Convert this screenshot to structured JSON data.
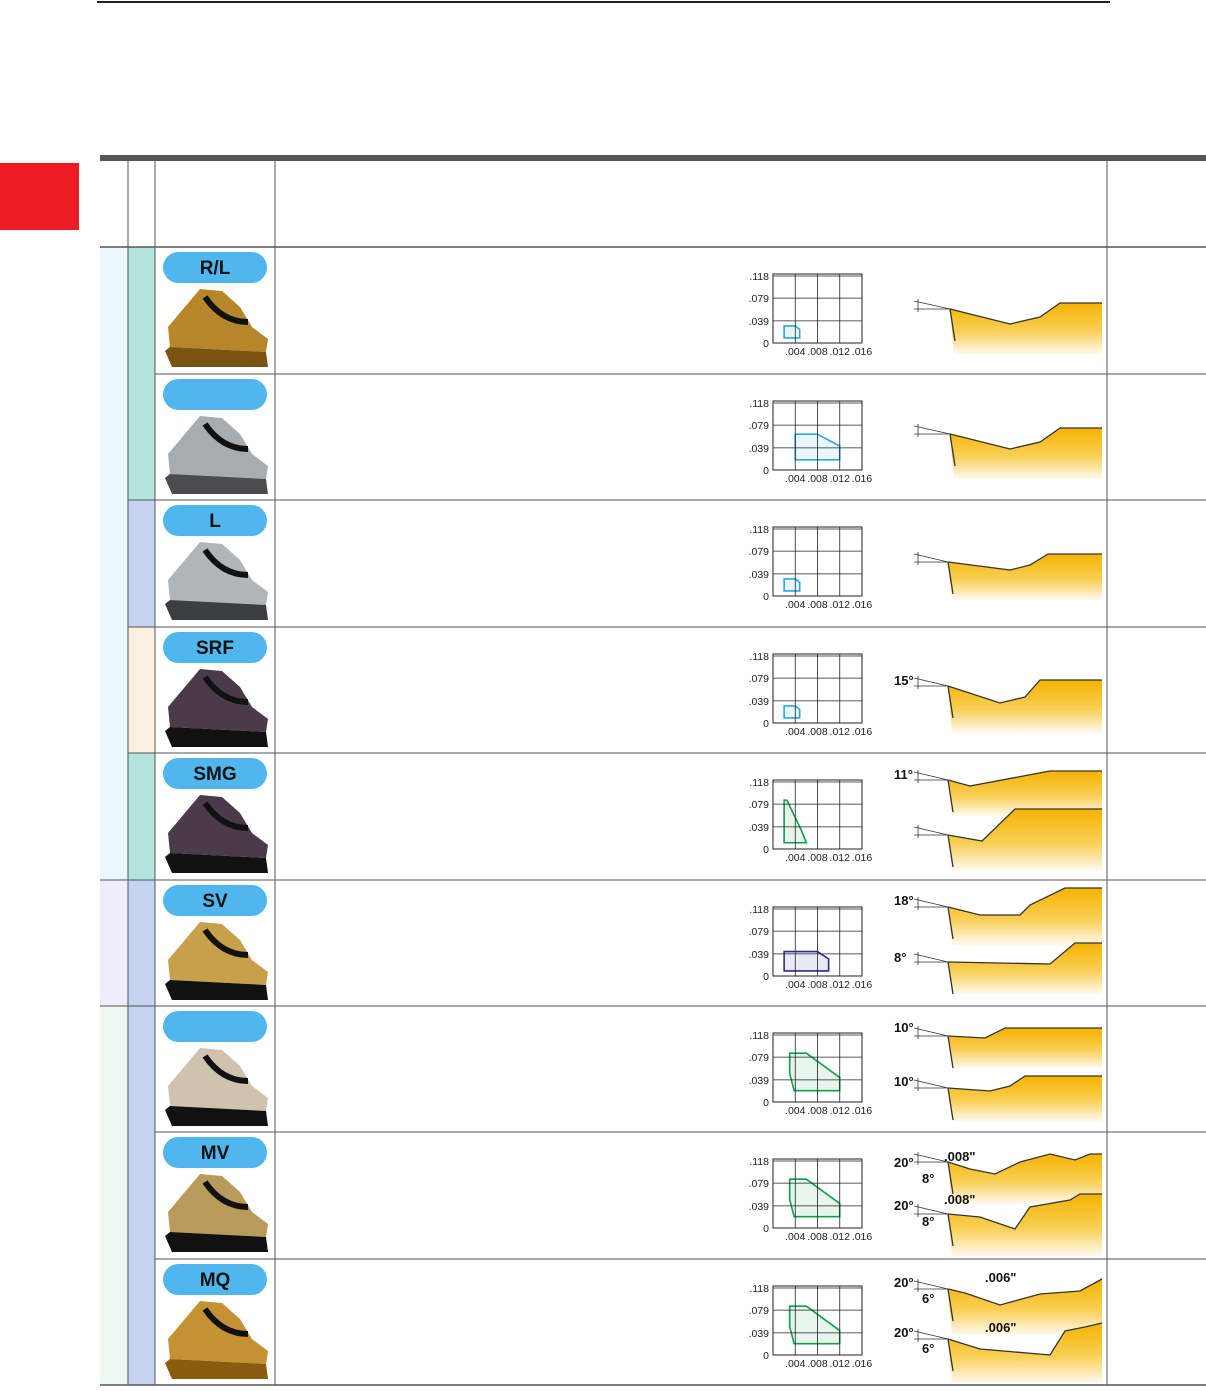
{
  "chart_axes": {
    "xlim": [
      0,
      0.016
    ],
    "ylim": [
      0,
      0.118
    ],
    "xticks": [
      {
        "value": 0.004,
        "label": ".004"
      },
      {
        "value": 0.008,
        "label": ".008"
      },
      {
        "value": 0.012,
        "label": ".012"
      },
      {
        "value": 0.016,
        "label": ".016"
      }
    ],
    "yticks": [
      0,
      {
        "value": 0.039,
        "label": ".039"
      },
      {
        "value": 0.079,
        "label": ".079"
      },
      {
        "value": 0.118,
        "label": ".118"
      }
    ]
  },
  "rows": [
    {
      "label": "R/L",
      "region_color": "#27a9e1",
      "region": {
        "feed": [
          0.002,
          0.002,
          0.004,
          0.0048,
          0.0048
        ],
        "depth": [
          0.009,
          0.03,
          0.03,
          0.024,
          0.009
        ]
      }
    },
    {
      "region_color": "#27a9e1",
      "region": {
        "feed": [
          0.004,
          0.004,
          0.008,
          0.012,
          0.012
        ],
        "depth": [
          0.018,
          0.063,
          0.063,
          0.042,
          0.018
        ]
      }
    },
    {
      "label": "L",
      "region_color": "#27a9e1",
      "region": {
        "feed": [
          0.002,
          0.002,
          0.004,
          0.0048,
          0.0048
        ],
        "depth": [
          0.009,
          0.03,
          0.03,
          0.024,
          0.009
        ]
      }
    },
    {
      "label": "SRF",
      "region_color": "#27a9e1",
      "region": {
        "feed": [
          0.002,
          0.002,
          0.004,
          0.0048,
          0.0048
        ],
        "depth": [
          0.009,
          0.03,
          0.03,
          0.024,
          0.009
        ]
      },
      "notes": [
        "15°"
      ]
    },
    {
      "label": "SMG",
      "region_color": "#0fa04b",
      "region": {
        "feed": [
          0.002,
          0.002,
          0.0025,
          0.005,
          0.006
        ],
        "depth": [
          0.011,
          0.086,
          0.086,
          0.035,
          0.011
        ]
      },
      "notes": [
        "11°"
      ]
    },
    {
      "label": "SV",
      "region_color": "#2b2f8f",
      "region": {
        "feed": [
          0.002,
          0.002,
          0.008,
          0.01,
          0.01
        ],
        "depth": [
          0.009,
          0.043,
          0.043,
          0.03,
          0.009
        ]
      },
      "notes": [
        "18°",
        "8°"
      ]
    },
    {
      "region_color": "#0fa04b",
      "region": {
        "feed": [
          0.0038,
          0.003,
          0.003,
          0.006,
          0.012,
          0.012
        ],
        "depth": [
          0.02,
          0.05,
          0.086,
          0.086,
          0.043,
          0.02
        ]
      },
      "notes": [
        "10°",
        "10°"
      ]
    },
    {
      "label": "MV",
      "region_color": "#0fa04b",
      "region": {
        "feed": [
          0.0038,
          0.003,
          0.003,
          0.006,
          0.012,
          0.012
        ],
        "depth": [
          0.02,
          0.05,
          0.086,
          0.086,
          0.043,
          0.02
        ]
      },
      "notes": [
        "20°",
        "8°",
        ".008\"",
        "20°",
        "8°",
        ".008\""
      ]
    },
    {
      "label": "MQ",
      "region_color": "#0fa04b",
      "region": {
        "feed": [
          0.0038,
          0.003,
          0.003,
          0.006,
          0.012,
          0.012
        ],
        "depth": [
          0.02,
          0.05,
          0.086,
          0.086,
          0.043,
          0.02
        ]
      },
      "notes": [
        "20°",
        "6°",
        ".006\"",
        "20°",
        "6°",
        ".006\""
      ]
    }
  ]
}
